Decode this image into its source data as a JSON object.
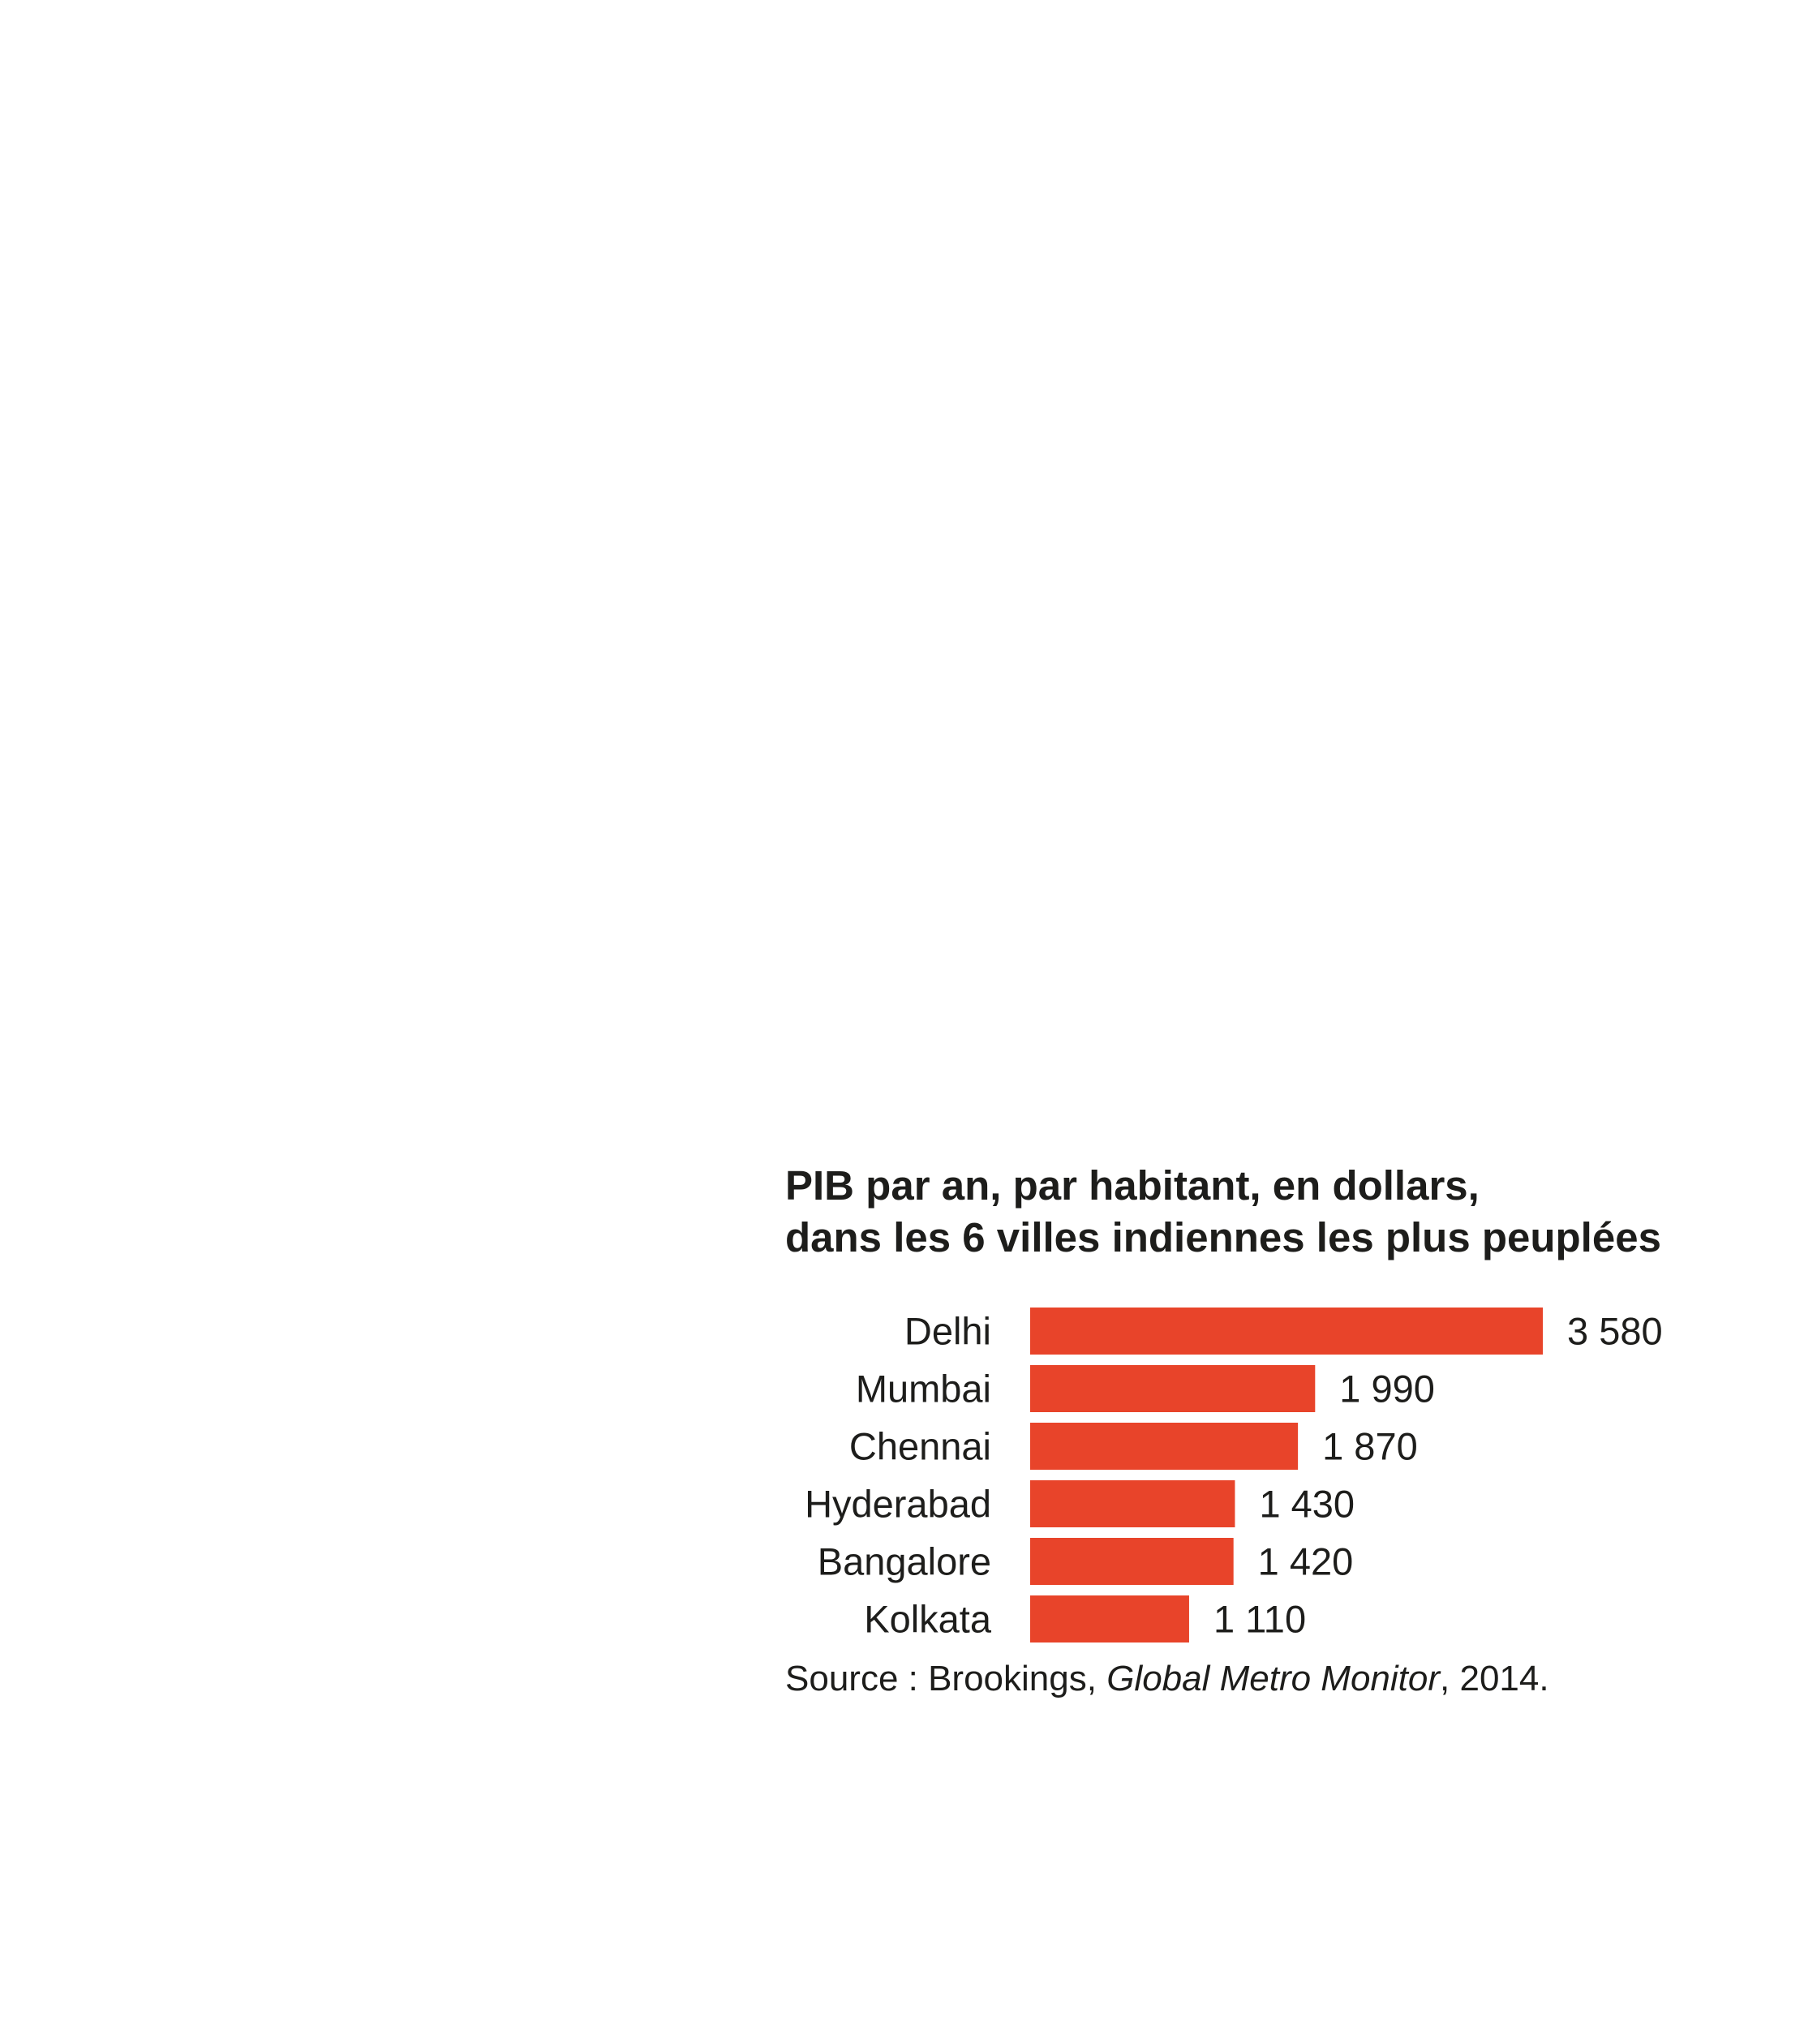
{
  "chart_data": {
    "type": "bar",
    "orientation": "horizontal",
    "title": [
      "PIB par an, par habitant, en dollars,",
      "dans les 6 villes indiennes les plus peuplées"
    ],
    "categories": [
      "Delhi",
      "Mumbai",
      "Chennai",
      "Hyderabad",
      "Bangalore",
      "Kolkata"
    ],
    "values": [
      3580,
      1990,
      1870,
      1430,
      1420,
      1110
    ],
    "value_labels": [
      "3 580",
      "1 990",
      "1 870",
      "1 430",
      "1 420",
      "1 110"
    ],
    "bar_color": "#e8442a",
    "text_color": "#1d1d1b",
    "xlabel": "",
    "ylabel": "",
    "grid": false,
    "legend": "none"
  },
  "source": {
    "prefix": "Source : Brookings, ",
    "work": "Global Metro Monitor",
    "suffix": ", 2014."
  }
}
